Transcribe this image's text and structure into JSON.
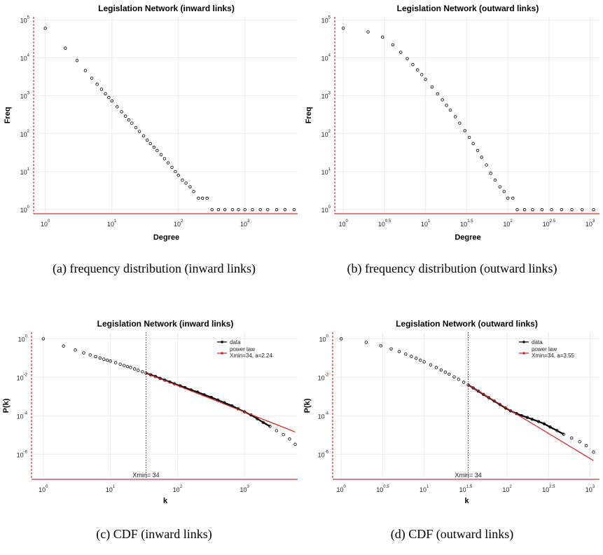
{
  "captions": [
    "(a) frequency distribution (inward links)",
    "(b) frequency distribution (outward links)",
    "(c) CDF (inward links)",
    "(d) CDF (outward links)"
  ],
  "colors": {
    "points": "#000000",
    "fit": "#e31a1c",
    "grid": "#ebebeb",
    "axis": "#cc0000"
  },
  "chart_data": [
    {
      "id": "a",
      "type": "scatter",
      "title": "Legislation Network (inward links)",
      "xlabel": "Degree",
      "ylabel": "Freq",
      "x_scale": "log10",
      "y_scale": "log10",
      "xlim": [
        0.7,
        6200
      ],
      "ylim": [
        0.78,
        120000
      ],
      "x_ticks": [
        {
          "value": 1,
          "base": "10",
          "exp": "0"
        },
        {
          "value": 10,
          "base": "10",
          "exp": "1"
        },
        {
          "value": 100,
          "base": "10",
          "exp": "2"
        },
        {
          "value": 1000,
          "base": "10",
          "exp": "3"
        }
      ],
      "y_ticks": [
        {
          "value": 1,
          "base": "10",
          "exp": "0"
        },
        {
          "value": 10,
          "base": "10",
          "exp": "1"
        },
        {
          "value": 100,
          "base": "10",
          "exp": "2"
        },
        {
          "value": 1000,
          "base": "10",
          "exp": "3"
        },
        {
          "value": 10000,
          "base": "10",
          "exp": "4"
        },
        {
          "value": 100000,
          "base": "10",
          "exp": "5"
        }
      ],
      "grid": true,
      "series": [
        {
          "points": [
            [
              1,
              60000
            ],
            [
              2,
              18000
            ],
            [
              3,
              8500
            ],
            [
              4,
              4600
            ],
            [
              5,
              2900
            ],
            [
              6,
              2000
            ],
            [
              7,
              1480
            ],
            [
              8,
              1130
            ],
            [
              9,
              900
            ],
            [
              10,
              730
            ],
            [
              12,
              510
            ],
            [
              14,
              380
            ],
            [
              16,
              290
            ],
            [
              18,
              230
            ],
            [
              20,
              190
            ],
            [
              23,
              145
            ],
            [
              26,
              115
            ],
            [
              30,
              88
            ],
            [
              34,
              68
            ],
            [
              38,
              55
            ],
            [
              43,
              44
            ],
            [
              48,
              36
            ],
            [
              55,
              28
            ],
            [
              62,
              22
            ],
            [
              70,
              17
            ],
            [
              80,
              13
            ],
            [
              90,
              10
            ],
            [
              100,
              8
            ],
            [
              115,
              6
            ],
            [
              130,
              5
            ],
            [
              150,
              4
            ],
            [
              170,
              3
            ],
            [
              200,
              2
            ],
            [
              230,
              2
            ],
            [
              270,
              2
            ],
            [
              320,
              1
            ],
            [
              400,
              1
            ],
            [
              500,
              1
            ],
            [
              650,
              1
            ],
            [
              800,
              1
            ],
            [
              1000,
              1
            ],
            [
              1300,
              1
            ],
            [
              1700,
              1
            ],
            [
              2200,
              1
            ],
            [
              3000,
              1
            ],
            [
              4000,
              1
            ],
            [
              5500,
              1
            ]
          ]
        }
      ]
    },
    {
      "id": "b",
      "type": "scatter",
      "title": "Legislation Network (outward links)",
      "xlabel": "Degree",
      "ylabel": "Freq",
      "x_scale": "log10",
      "y_scale": "log10",
      "xlim": [
        0.82,
        1300
      ],
      "ylim": [
        0.78,
        120000
      ],
      "x_ticks": [
        {
          "value": 1,
          "base": "10",
          "exp": "0"
        },
        {
          "value": 3.162,
          "base": "10",
          "exp": "0.5"
        },
        {
          "value": 10,
          "base": "10",
          "exp": "1"
        },
        {
          "value": 31.62,
          "base": "10",
          "exp": "1.5"
        },
        {
          "value": 100,
          "base": "10",
          "exp": "2"
        },
        {
          "value": 316.2,
          "base": "10",
          "exp": "2.5"
        },
        {
          "value": 1000,
          "base": "10",
          "exp": "3"
        }
      ],
      "y_ticks": [
        {
          "value": 1,
          "base": "10",
          "exp": "0"
        },
        {
          "value": 10,
          "base": "10",
          "exp": "1"
        },
        {
          "value": 100,
          "base": "10",
          "exp": "2"
        },
        {
          "value": 1000,
          "base": "10",
          "exp": "3"
        },
        {
          "value": 10000,
          "base": "10",
          "exp": "4"
        },
        {
          "value": 100000,
          "base": "10",
          "exp": "5"
        }
      ],
      "grid": true,
      "series": [
        {
          "points": [
            [
              1,
              60000
            ],
            [
              2,
              48000
            ],
            [
              3,
              35000
            ],
            [
              4,
              22000
            ],
            [
              5,
              14000
            ],
            [
              6,
              9500
            ],
            [
              7,
              6600
            ],
            [
              8,
              4800
            ],
            [
              9,
              3600
            ],
            [
              10,
              2700
            ],
            [
              12,
              1700
            ],
            [
              14,
              1120
            ],
            [
              16,
              780
            ],
            [
              18,
              560
            ],
            [
              20,
              420
            ],
            [
              23,
              280
            ],
            [
              26,
              190
            ],
            [
              30,
              120
            ],
            [
              34,
              80
            ],
            [
              38,
              55
            ],
            [
              43,
              36
            ],
            [
              48,
              24
            ],
            [
              55,
              15
            ],
            [
              62,
              9
            ],
            [
              70,
              6
            ],
            [
              80,
              4
            ],
            [
              90,
              3
            ],
            [
              100,
              2
            ],
            [
              115,
              2
            ],
            [
              130,
              1
            ],
            [
              160,
              1
            ],
            [
              200,
              1
            ],
            [
              260,
              1
            ],
            [
              340,
              1
            ],
            [
              450,
              1
            ],
            [
              600,
              1
            ],
            [
              800,
              1
            ],
            [
              1100,
              1
            ]
          ]
        }
      ]
    },
    {
      "id": "c",
      "type": "scatter",
      "title": "Legislation Network (inward links)",
      "xlabel": "k",
      "ylabel": "P(k)",
      "x_scale": "log10",
      "y_scale": "log10",
      "xlim": [
        0.7,
        6200
      ],
      "ylim": [
        5e-08,
        2.2
      ],
      "x_ticks": [
        {
          "value": 1,
          "base": "10",
          "exp": "0"
        },
        {
          "value": 10,
          "base": "10",
          "exp": "1"
        },
        {
          "value": 100,
          "base": "10",
          "exp": "2"
        },
        {
          "value": 1000,
          "base": "10",
          "exp": "3"
        }
      ],
      "y_ticks": [
        {
          "value": 1,
          "base": "10",
          "exp": "0"
        },
        {
          "value": 0.01,
          "base": "10",
          "exp": "-2"
        },
        {
          "value": 0.0001,
          "base": "10",
          "exp": "-4"
        },
        {
          "value": 1e-06,
          "base": "10",
          "exp": "-6"
        }
      ],
      "grid": true,
      "xmin": 34,
      "xmin_label": "Xmin= 34",
      "legend": {
        "position": "top-right",
        "entries": [
          "data",
          "power law",
          "Xmin=34, a=2.24"
        ]
      },
      "series": [
        {
          "name": "data",
          "points": [
            [
              1,
              1.0
            ],
            [
              2,
              0.42
            ],
            [
              3,
              0.26
            ],
            [
              4,
              0.185
            ],
            [
              5,
              0.145
            ],
            [
              6,
              0.118
            ],
            [
              7,
              0.1
            ],
            [
              8,
              0.087
            ],
            [
              9,
              0.077
            ],
            [
              10,
              0.069
            ],
            [
              12,
              0.057
            ],
            [
              14,
              0.048
            ],
            [
              16,
              0.041
            ],
            [
              18,
              0.036
            ],
            [
              20,
              0.032
            ],
            [
              23,
              0.027
            ],
            [
              26,
              0.023
            ],
            [
              30,
              0.0195
            ],
            [
              34,
              0.0165
            ],
            [
              40,
              0.0135
            ],
            [
              47,
              0.011
            ],
            [
              55,
              0.0088
            ],
            [
              65,
              0.0071
            ],
            [
              77,
              0.0057
            ],
            [
              90,
              0.0046
            ],
            [
              110,
              0.0036
            ],
            [
              130,
              0.0029
            ],
            [
              160,
              0.0022
            ],
            [
              200,
              0.0017
            ],
            [
              250,
              0.00125
            ],
            [
              320,
              0.0009
            ],
            [
              400,
              0.00066
            ],
            [
              500,
              0.00048
            ],
            [
              650,
              0.00033
            ],
            [
              800,
              0.00023
            ],
            [
              1000,
              0.00016
            ],
            [
              1250,
              0.00011
            ],
            [
              1550,
              7e-05
            ],
            [
              1900,
              4.5e-05
            ],
            [
              2400,
              2.8e-05
            ],
            [
              3000,
              1.7e-05
            ],
            [
              3800,
              1.05e-05
            ],
            [
              4700,
              6.2e-06
            ],
            [
              5700,
              3.3e-06
            ]
          ]
        },
        {
          "name": "power law",
          "line": [
            [
              34,
              0.0165
            ],
            [
              5700,
              1.44e-05
            ]
          ]
        }
      ]
    },
    {
      "id": "d",
      "type": "scatter",
      "title": "Legislation Network (outward links)",
      "xlabel": "k",
      "ylabel": "P(k)",
      "x_scale": "log10",
      "y_scale": "log10",
      "xlim": [
        0.82,
        1300
      ],
      "ylim": [
        5e-08,
        2.2
      ],
      "x_ticks": [
        {
          "value": 1,
          "base": "10",
          "exp": "0"
        },
        {
          "value": 3.162,
          "base": "10",
          "exp": "0.5"
        },
        {
          "value": 10,
          "base": "10",
          "exp": "1"
        },
        {
          "value": 31.62,
          "base": "10",
          "exp": "1.5"
        },
        {
          "value": 100,
          "base": "10",
          "exp": "2"
        },
        {
          "value": 316.2,
          "base": "10",
          "exp": "2.5"
        },
        {
          "value": 1000,
          "base": "10",
          "exp": "3"
        }
      ],
      "y_ticks": [
        {
          "value": 1,
          "base": "10",
          "exp": "0"
        },
        {
          "value": 0.01,
          "base": "10",
          "exp": "-2"
        },
        {
          "value": 0.0001,
          "base": "10",
          "exp": "-4"
        },
        {
          "value": 1e-06,
          "base": "10",
          "exp": "-6"
        }
      ],
      "grid": true,
      "xmin": 34,
      "xmin_label": "Xmin= 34",
      "legend": {
        "position": "top-right",
        "entries": [
          "data",
          "power law",
          "Xmin=34, a=3.55"
        ]
      },
      "series": [
        {
          "name": "data",
          "points": [
            [
              1,
              1.0
            ],
            [
              2,
              0.65
            ],
            [
              3,
              0.43
            ],
            [
              4,
              0.3
            ],
            [
              5,
              0.215
            ],
            [
              6,
              0.16
            ],
            [
              7,
              0.122
            ],
            [
              8,
              0.096
            ],
            [
              9,
              0.077
            ],
            [
              10,
              0.063
            ],
            [
              12,
              0.044
            ],
            [
              14,
              0.032
            ],
            [
              16,
              0.024
            ],
            [
              18,
              0.0185
            ],
            [
              20,
              0.0145
            ],
            [
              23,
              0.0105
            ],
            [
              26,
              0.0078
            ],
            [
              30,
              0.0055
            ],
            [
              34,
              0.004
            ],
            [
              39,
              0.0028
            ],
            [
              45,
              0.0019
            ],
            [
              52,
              0.00128
            ],
            [
              60,
              0.00087
            ],
            [
              70,
              0.00058
            ],
            [
              82,
              0.00038
            ],
            [
              96,
              0.00025
            ],
            [
              110,
              0.00018
            ],
            [
              130,
              0.00013
            ],
            [
              150,
              0.000102
            ],
            [
              175,
              8.2e-05
            ],
            [
              200,
              6.6e-05
            ],
            [
              240,
              5e-05
            ],
            [
              280,
              3.8e-05
            ],
            [
              330,
              2.6e-05
            ],
            [
              400,
              1.7e-05
            ],
            [
              480,
              1.1e-05
            ],
            [
              600,
              7e-06
            ],
            [
              750,
              4.5e-06
            ],
            [
              900,
              2.8e-06
            ],
            [
              1100,
              1.3e-06
            ]
          ]
        },
        {
          "name": "power law",
          "line": [
            [
              34,
              0.004
            ],
            [
              1100,
              4.7e-07
            ]
          ]
        }
      ]
    }
  ]
}
